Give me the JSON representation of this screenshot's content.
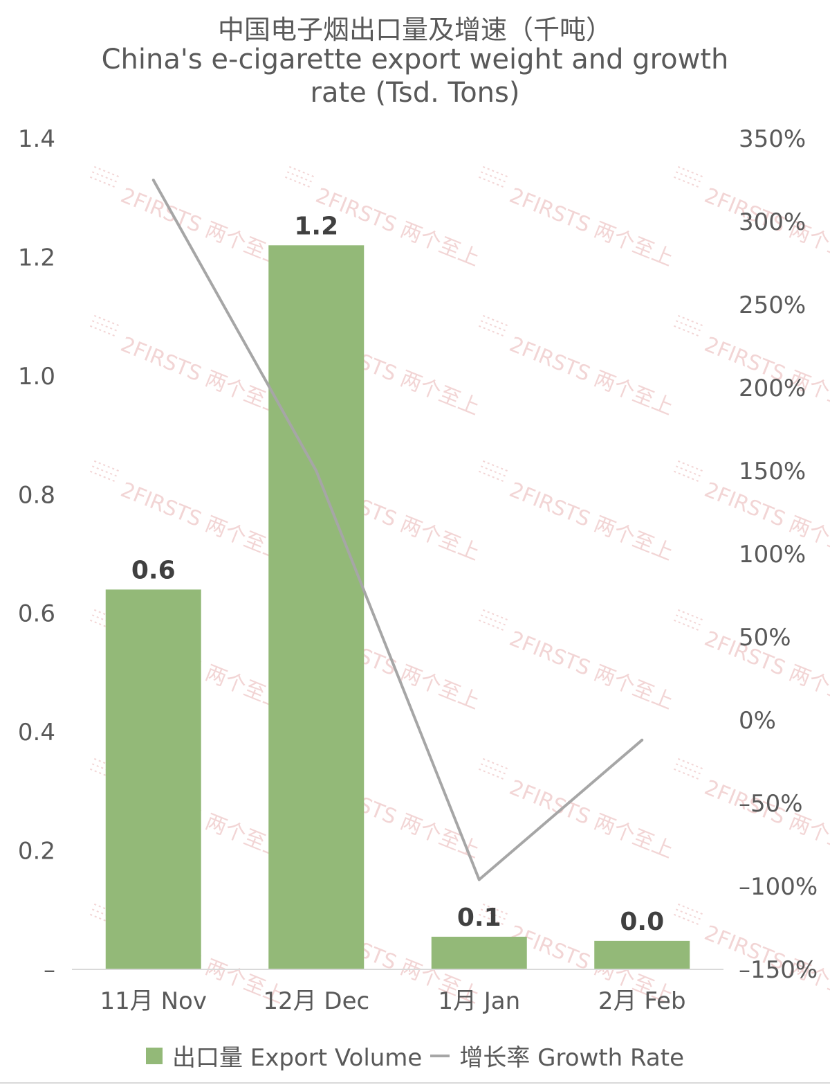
{
  "chart_data": {
    "type": "bar",
    "title": "中国电子烟出口量及增速（千吨）",
    "subtitle": "China's e-cigarette export weight and growth rate (Tsd. Tons)",
    "categories": [
      "11月 Nov",
      "12月 Dec",
      "1月 Jan",
      "2月 Feb"
    ],
    "series": [
      {
        "name": "出口量 Export Volume",
        "type": "bar",
        "axis": "left",
        "values": [
          0.64,
          1.22,
          0.055,
          0.048
        ],
        "labels": [
          "0.6",
          "1.2",
          "0.1",
          "0.0"
        ],
        "color": "#93b978"
      },
      {
        "name": "增长率 Growth Rate",
        "type": "line",
        "axis": "right",
        "values": [
          3.25,
          1.5,
          -0.96,
          -0.12
        ],
        "color": "#a6a6a6"
      }
    ],
    "y_left": {
      "ylim": [
        0,
        1.4
      ],
      "ticks": [
        0,
        0.2,
        0.4,
        0.6,
        0.8,
        1.0,
        1.2,
        1.4
      ],
      "tick_labels": [
        "–",
        "0.2",
        "0.4",
        "0.6",
        "0.8",
        "1.0",
        "1.2",
        "1.4"
      ]
    },
    "y_right": {
      "ylim": [
        -1.5,
        3.5
      ],
      "ticks": [
        -1.5,
        -1.0,
        -0.5,
        0,
        0.5,
        1.0,
        1.5,
        2.0,
        2.5,
        3.0,
        3.5
      ],
      "tick_labels": [
        "–150%",
        "–100%",
        "–50%",
        "0%",
        "50%",
        "100%",
        "150%",
        "200%",
        "250%",
        "300%",
        "350%"
      ]
    },
    "grid": false,
    "legend": "bottom"
  },
  "colors": {
    "bar": "#93b978",
    "line": "#a6a6a6",
    "text": "#595959",
    "value_label": "#404040",
    "watermark": "#e9b3b3"
  },
  "watermark": {
    "text": "2FIRSTS 两个至上"
  }
}
